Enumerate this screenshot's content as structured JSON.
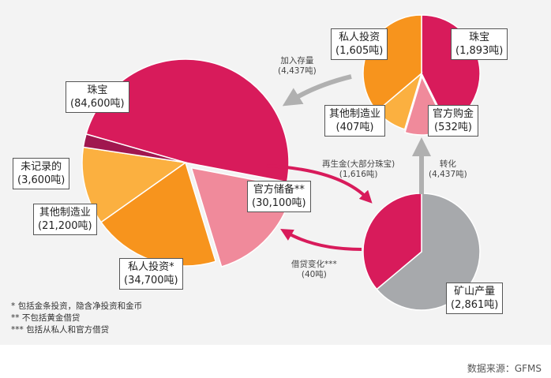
{
  "chart_data": [
    {
      "type": "pie",
      "slices": [
        {
          "label": "珠宝",
          "value_text": "(84,600吨)",
          "value": 84600,
          "color": "#d81b5b"
        },
        {
          "label": "官方储备**",
          "value_text": "(30,100吨)",
          "value": 30100,
          "color": "#f08a9b"
        },
        {
          "label": "私人投资*",
          "value_text": "(34,700吨)",
          "value": 34700,
          "color": "#f7941d"
        },
        {
          "label": "其他制造业",
          "value_text": "(21,200吨)",
          "value": 21200,
          "color": "#fbb040"
        },
        {
          "label": "未记录的",
          "value_text": "(3,600吨)",
          "value": 3600,
          "color": "#a0174f"
        }
      ]
    },
    {
      "type": "pie",
      "slices": [
        {
          "label": "珠宝",
          "value_text": "(1,893吨)",
          "value": 1893,
          "color": "#d81b5b"
        },
        {
          "label": "官方购金",
          "value_text": "(532吨)",
          "value": 532,
          "color": "#f08a9b"
        },
        {
          "label": "其他制造业",
          "value_text": "(407吨)",
          "value": 407,
          "color": "#fbb040"
        },
        {
          "label": "私人投资",
          "value_text": "(1,605吨)",
          "value": 1605,
          "color": "#f7941d"
        }
      ]
    },
    {
      "type": "pie",
      "slices": [
        {
          "label": "矿山产量",
          "value_text": "(2,861吨)",
          "value": 2861,
          "color": "#a7a9ac"
        },
        {
          "label": "再生金",
          "value": 1616,
          "color": "#d81b5b"
        }
      ]
    }
  ],
  "flows": {
    "add_stock": {
      "label": "加入存量",
      "value": "(4,437吨)"
    },
    "recycle": {
      "label": "再生金(大部分珠宝)",
      "value": "(1,616吨)"
    },
    "transfer": {
      "label": "转化",
      "value": "(4,437吨)"
    },
    "lending": {
      "label": "借贷变化***",
      "value": "(40吨)"
    }
  },
  "footnotes": [
    "* 包括金条投资，隐含净投资和金币",
    "** 不包括黄金借贷",
    "*** 包括从私人和官方借贷"
  ],
  "source": "数据来源：GFMS"
}
